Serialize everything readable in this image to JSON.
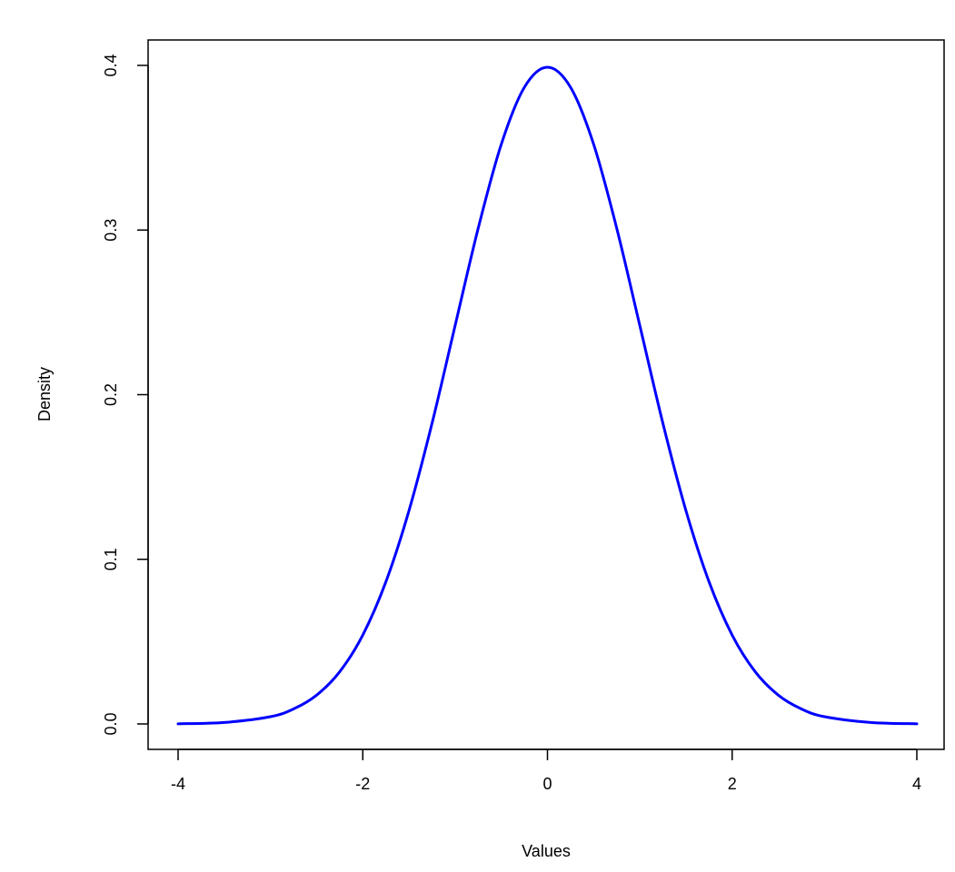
{
  "chart_data": {
    "type": "line",
    "title": "",
    "xlabel": "Values",
    "ylabel": "Density",
    "xlim": [
      -4,
      4
    ],
    "ylim": [
      0,
      0.4
    ],
    "x_ticks": [
      -4,
      -2,
      0,
      2,
      4
    ],
    "x_tick_labels": [
      "-4",
      "-2",
      "0",
      "2",
      "4"
    ],
    "y_ticks": [
      0.0,
      0.1,
      0.2,
      0.3,
      0.4
    ],
    "y_tick_labels": [
      "0.0",
      "0.1",
      "0.2",
      "0.3",
      "0.4"
    ],
    "grid": false,
    "legend": "none",
    "series": [
      {
        "color": "#0000ff",
        "x": [
          -4.0,
          -3.5,
          -3.0,
          -2.75,
          -2.5,
          -2.25,
          -2.0,
          -1.75,
          -1.5,
          -1.25,
          -1.0,
          -0.75,
          -0.5,
          -0.25,
          0.0,
          0.25,
          0.5,
          0.75,
          1.0,
          1.25,
          1.5,
          1.75,
          2.0,
          2.25,
          2.5,
          2.75,
          3.0,
          3.5,
          4.0
        ],
        "y": [
          0.0001,
          0.0009,
          0.0044,
          0.0091,
          0.0175,
          0.0317,
          0.054,
          0.0863,
          0.1295,
          0.1826,
          0.242,
          0.3011,
          0.3521,
          0.3867,
          0.3989,
          0.3867,
          0.3521,
          0.3011,
          0.242,
          0.1826,
          0.1295,
          0.0863,
          0.054,
          0.0317,
          0.0175,
          0.0091,
          0.0044,
          0.0009,
          0.0001
        ]
      }
    ]
  }
}
